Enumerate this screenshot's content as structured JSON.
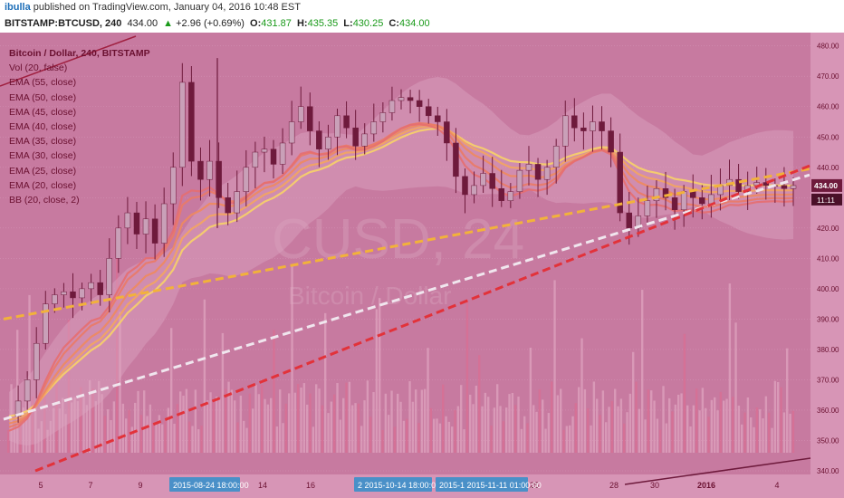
{
  "header": {
    "user": "ibulla",
    "published": "published on TradingView.com, January 04, 2016 10:48 EST",
    "symbol": "BITSTAMP:BTCUSD, 240",
    "last": "434.00",
    "change_arrow": "▲",
    "change": "+2.96 (+0.69%)",
    "o_label": "O:",
    "o": "431.87",
    "h_label": "H:",
    "h": "435.35",
    "l_label": "L:",
    "l": "430.25",
    "c_label": "C:",
    "c": "434.00"
  },
  "legend": {
    "title": "Bitcoin / Dollar, 240, BITSTAMP",
    "items": [
      "Vol (20, false)",
      "EMA (55, close)",
      "EMA (50, close)",
      "EMA (45, close)",
      "EMA (40, close)",
      "EMA (35, close)",
      "EMA (30, close)",
      "EMA (25, close)",
      "EMA (20, close)",
      "BB (20, close, 2)"
    ]
  },
  "watermark": {
    "main": "CUSD, 24",
    "sub": "Bitcoin / Dollar"
  },
  "colors": {
    "background": "#c77aa0",
    "candle_up": "#c9a0b8",
    "candle_down": "#6e1a3c",
    "ema_band": [
      "#f7d268",
      "#f3a560",
      "#ee8a5e",
      "#ea7a66",
      "#e66e70"
    ],
    "trend_yellow": "#f2b23a",
    "trend_white": "#f0e6ee",
    "trend_red": "#e2323a",
    "price_badge": "#6e1a3c"
  },
  "chart_data": {
    "type": "candlestick",
    "title": "Bitcoin / Dollar, 240, BITSTAMP",
    "ylim": [
      340,
      482
    ],
    "y_ticks": [
      340,
      350,
      360,
      370,
      380,
      390,
      400,
      410,
      420,
      430,
      440,
      450,
      460,
      470,
      480
    ],
    "x_ticks": [
      "5",
      "7",
      "9",
      "14",
      "16",
      "28",
      "30",
      "2016",
      "4",
      "25"
    ],
    "crosshair_dates": [
      "2015-08-24 18:00:00",
      "2 2015-10-14 18:00:00",
      "2015-1 2015-11-11 01:00:00"
    ],
    "price_label": "434.00",
    "time_label": "11:11",
    "close_series": [
      358,
      363,
      370,
      382,
      395,
      398,
      399,
      397,
      400,
      402,
      398,
      410,
      420,
      425,
      418,
      423,
      415,
      428,
      440,
      468,
      442,
      436,
      442,
      430,
      425,
      432,
      440,
      445,
      446,
      441,
      448,
      455,
      460,
      452,
      446,
      450,
      457,
      453,
      447,
      451,
      455,
      458,
      462,
      463,
      462,
      460,
      457,
      455,
      448,
      437,
      431,
      434,
      438,
      433,
      429,
      432,
      439,
      441,
      436,
      440,
      447,
      457,
      453,
      452,
      455,
      452,
      445,
      425,
      420,
      424,
      429,
      433,
      430,
      426,
      432,
      430,
      428,
      431,
      434,
      436,
      432,
      434,
      435,
      434,
      434,
      433,
      434
    ],
    "trendlines": [
      {
        "color": "yellow",
        "from": [
          0,
          390
        ],
        "to": [
          1,
          438
        ]
      },
      {
        "color": "white",
        "from": [
          0,
          357
        ],
        "to": [
          1,
          436
        ]
      },
      {
        "color": "red",
        "from": [
          0.04,
          340
        ],
        "to": [
          1,
          439
        ]
      }
    ]
  }
}
